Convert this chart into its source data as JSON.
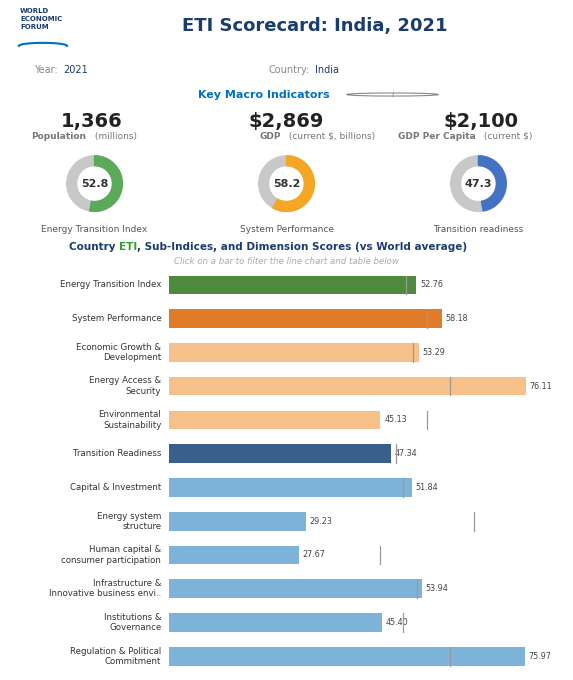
{
  "title": "ETI Scorecard: India, 2021",
  "year": "2021",
  "country": "India",
  "macro": {
    "population": "1,366",
    "population_label": "Population",
    "population_unit": "(millions)",
    "gdp": "$2,869",
    "gdp_label": "GDP",
    "gdp_unit": "(current $, billions)",
    "gdpcap": "$2,100",
    "gdpcap_label": "GDP Per Capita",
    "gdpcap_unit": "(current $)"
  },
  "donuts": [
    {
      "value": 52.8,
      "max": 100,
      "color": "#5aaa5a",
      "label": "Energy Transition Index"
    },
    {
      "value": 58.2,
      "max": 100,
      "color": "#f5a623",
      "label": "System Performance"
    },
    {
      "value": 47.3,
      "max": 100,
      "color": "#4472c4",
      "label": "Transition readiness"
    }
  ],
  "donut_bg": "#c8c8c8",
  "bars": [
    {
      "label": "Energy Transition Index",
      "value": 52.76,
      "color": "#4e8a3e",
      "world_avg": 50.5
    },
    {
      "label": "System Performance",
      "value": 58.18,
      "color": "#e07b2a",
      "world_avg": 55.0
    },
    {
      "label": "Economic Growth &\nDevelopment",
      "value": 53.29,
      "color": "#f5c08a",
      "world_avg": 52.0
    },
    {
      "label": "Energy Access &\nSecurity",
      "value": 76.11,
      "color": "#f5c08a",
      "world_avg": 60.0
    },
    {
      "label": "Environmental\nSustainability",
      "value": 45.13,
      "color": "#f5c08a",
      "world_avg": 55.0
    },
    {
      "label": "Transition Readiness",
      "value": 47.34,
      "color": "#3a5f8a",
      "world_avg": 48.5
    },
    {
      "label": "Capital & Investment",
      "value": 51.84,
      "color": "#7db3d8",
      "world_avg": 50.0
    },
    {
      "label": "Energy system\nstructure",
      "value": 29.23,
      "color": "#7db3d8",
      "world_avg": 65.0
    },
    {
      "label": "Human capital &\nconsumer participation",
      "value": 27.67,
      "color": "#7db3d8",
      "world_avg": 45.0
    },
    {
      "label": "Infrastructure &\nInnovative business envi..",
      "value": 53.94,
      "color": "#7db3d8",
      "world_avg": 53.0
    },
    {
      "label": "Institutions &\nGovernance",
      "value": 45.4,
      "color": "#7db3d8",
      "world_avg": 50.0
    },
    {
      "label": "Regulation & Political\nCommitment",
      "value": 75.97,
      "color": "#7db3d8",
      "world_avg": 60.0
    }
  ],
  "chart_title_parts": [
    {
      "text": "Country ",
      "color": "#1a3c6e",
      "bold": true
    },
    {
      "text": "ETI",
      "color": "#2ca02c",
      "bold": true
    },
    {
      "text": ", Sub-Indices, and Dimension Scores (vs World average)",
      "color": "#1a3c6e",
      "bold": true
    }
  ],
  "chart_subtitle": "Click on a bar to filter the line chart and table below",
  "title_color": "#1a3c6e",
  "eti_color": "#0070c0",
  "bg_color": "#ffffff",
  "separator_color": "#d0d0d0",
  "world_avg_line_color": "#999999"
}
